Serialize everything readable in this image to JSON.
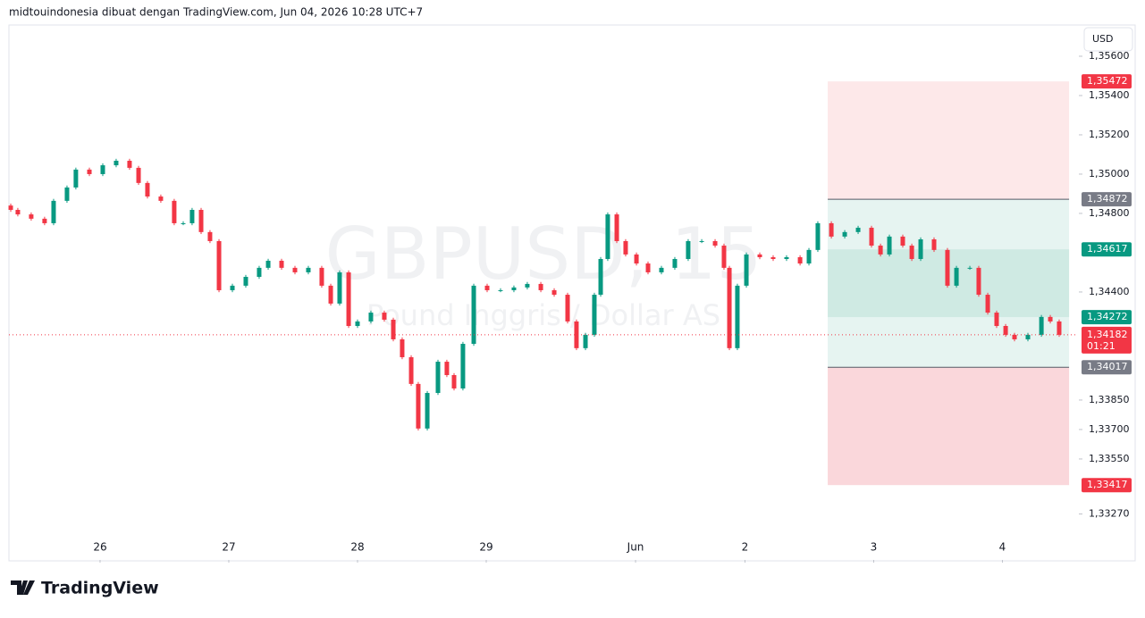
{
  "header": {
    "attribution": "midtouindonesia dibuat dengan TradingView.com, Jun 04, 2026 10:28 UTC+7"
  },
  "footer": {
    "logo": "TradingView"
  },
  "chart_data": {
    "type": "candlestick",
    "watermark": "GBPUSD, 15",
    "watermark_subtitle": "Pound Inggris / Dollar AS",
    "currency": "USD",
    "up_color": "#089981",
    "down_color": "#f23645",
    "xlim": [
      -0.708,
      7.59
    ],
    "xticks": [
      {
        "value": 0,
        "label": "26"
      },
      {
        "value": 1,
        "label": "27"
      },
      {
        "value": 2,
        "label": "28"
      },
      {
        "value": 3,
        "label": "29"
      },
      {
        "value": 4.16,
        "label": "Jun"
      },
      {
        "value": 5.01,
        "label": "2"
      },
      {
        "value": 6.01,
        "label": "3"
      },
      {
        "value": 7.01,
        "label": "4"
      }
    ],
    "ylim": [
      1.33036,
      1.35759
    ],
    "yticks": [
      {
        "value": 1.356,
        "label": "1,35600"
      },
      {
        "value": 1.354,
        "label": "1,35400"
      },
      {
        "value": 1.352,
        "label": "1,35200"
      },
      {
        "value": 1.35,
        "label": "1,35000"
      },
      {
        "value": 1.348,
        "label": "1,34800"
      },
      {
        "value": 1.344,
        "label": "1,34400"
      },
      {
        "value": 1.3385,
        "label": "1,33850"
      },
      {
        "value": 1.337,
        "label": "1,33700"
      },
      {
        "value": 1.3355,
        "label": "1,33550"
      },
      {
        "value": 1.3327,
        "label": "1,33270"
      }
    ],
    "x": [
      -0.694,
      -0.639,
      -0.535,
      -0.431,
      -0.361,
      -0.257,
      -0.188,
      -0.083,
      0.021,
      0.125,
      0.229,
      0.299,
      0.368,
      0.472,
      0.576,
      0.646,
      0.715,
      0.785,
      0.854,
      0.924,
      1.028,
      1.132,
      1.236,
      1.306,
      1.41,
      1.514,
      1.618,
      1.722,
      1.792,
      1.861,
      1.931,
      2.0,
      2.104,
      2.208,
      2.278,
      2.347,
      2.417,
      2.472,
      2.542,
      2.625,
      2.694,
      2.75,
      2.819,
      2.903,
      3.007,
      3.111,
      3.215,
      3.319,
      3.424,
      3.528,
      3.632,
      3.701,
      3.771,
      3.84,
      3.889,
      3.944,
      4.014,
      4.083,
      4.167,
      4.257,
      4.361,
      4.465,
      4.569,
      4.674,
      4.778,
      4.847,
      4.889,
      4.951,
      5.021,
      5.125,
      5.229,
      5.333,
      5.438,
      5.507,
      5.576,
      5.681,
      5.785,
      5.889,
      5.993,
      6.063,
      6.132,
      6.236,
      6.306,
      6.375,
      6.479,
      6.583,
      6.653,
      6.757,
      6.826,
      6.896,
      6.965,
      7.035,
      7.104,
      7.208,
      7.313,
      7.382,
      7.451
    ],
    "open": [
      1.3484,
      1.34818,
      1.34795,
      1.34773,
      1.3475,
      1.34864,
      1.34932,
      1.35023,
      1.35,
      1.35045,
      1.35068,
      1.35032,
      1.34955,
      1.34886,
      1.34864,
      1.3475,
      1.3475,
      1.34818,
      1.34705,
      1.34659,
      1.34409,
      1.34432,
      1.34477,
      1.34523,
      1.34559,
      1.34523,
      1.345,
      1.34523,
      1.34432,
      1.34341,
      1.345,
      1.34227,
      1.3425,
      1.34295,
      1.34259,
      1.34159,
      1.34068,
      1.33932,
      1.33705,
      1.33886,
      1.34045,
      1.33977,
      1.33909,
      1.34136,
      1.34432,
      1.34409,
      1.34409,
      1.34423,
      1.34441,
      1.34409,
      1.34386,
      1.3425,
      1.34114,
      1.34182,
      1.34386,
      1.34568,
      1.34795,
      1.34659,
      1.34591,
      1.34545,
      1.345,
      1.34523,
      1.34568,
      1.34659,
      1.34659,
      1.34636,
      1.34523,
      1.34114,
      1.34432,
      1.34591,
      1.34577,
      1.34568,
      1.34577,
      1.34545,
      1.34614,
      1.3475,
      1.34682,
      1.34705,
      1.34727,
      1.34636,
      1.34591,
      1.34682,
      1.34636,
      1.34568,
      1.34668,
      1.34614,
      1.34432,
      1.34523,
      1.34523,
      1.34386,
      1.34295,
      1.34227,
      1.34182,
      1.34159,
      1.34182,
      1.34273,
      1.3425
    ],
    "high": [
      1.3485,
      1.34828,
      1.34805,
      1.34783,
      1.34874,
      1.34942,
      1.35033,
      1.35033,
      1.35055,
      1.35078,
      1.35078,
      1.35042,
      1.34965,
      1.34896,
      1.34874,
      1.3476,
      1.34828,
      1.34828,
      1.34715,
      1.34669,
      1.34442,
      1.34487,
      1.34533,
      1.34569,
      1.34569,
      1.34533,
      1.34533,
      1.34533,
      1.34442,
      1.3451,
      1.3451,
      1.3426,
      1.34305,
      1.34305,
      1.34269,
      1.34169,
      1.34078,
      1.33942,
      1.33896,
      1.34055,
      1.34055,
      1.33987,
      1.34146,
      1.34442,
      1.34442,
      1.34419,
      1.34433,
      1.34451,
      1.34451,
      1.34419,
      1.34396,
      1.3426,
      1.34192,
      1.34396,
      1.34578,
      1.34805,
      1.34805,
      1.34669,
      1.34601,
      1.34555,
      1.34533,
      1.34578,
      1.34669,
      1.34669,
      1.34669,
      1.34646,
      1.34533,
      1.34442,
      1.34601,
      1.34601,
      1.34587,
      1.34587,
      1.34587,
      1.34624,
      1.3476,
      1.3476,
      1.34715,
      1.34737,
      1.34737,
      1.34646,
      1.34692,
      1.34692,
      1.34646,
      1.34678,
      1.34678,
      1.34624,
      1.34533,
      1.34533,
      1.34533,
      1.34396,
      1.34305,
      1.34237,
      1.34192,
      1.34192,
      1.34283,
      1.34283,
      1.3426
    ],
    "low": [
      1.34808,
      1.34785,
      1.34763,
      1.3474,
      1.3474,
      1.34854,
      1.34922,
      1.3499,
      1.3499,
      1.35035,
      1.35022,
      1.34945,
      1.34876,
      1.34854,
      1.3474,
      1.3474,
      1.3474,
      1.34695,
      1.34649,
      1.34399,
      1.34399,
      1.34422,
      1.34467,
      1.34513,
      1.34513,
      1.3449,
      1.3449,
      1.34422,
      1.34331,
      1.34331,
      1.34217,
      1.34217,
      1.3424,
      1.34249,
      1.34149,
      1.34058,
      1.33922,
      1.33695,
      1.33695,
      1.33876,
      1.33967,
      1.33899,
      1.33899,
      1.34126,
      1.34399,
      1.34399,
      1.34399,
      1.34413,
      1.34399,
      1.34376,
      1.3424,
      1.34104,
      1.34104,
      1.34172,
      1.34376,
      1.34558,
      1.34649,
      1.34581,
      1.34535,
      1.3449,
      1.3449,
      1.34513,
      1.34558,
      1.34649,
      1.34626,
      1.34513,
      1.34104,
      1.34104,
      1.34422,
      1.34567,
      1.34558,
      1.34558,
      1.34535,
      1.34535,
      1.34604,
      1.34672,
      1.34672,
      1.34695,
      1.34626,
      1.34581,
      1.34581,
      1.34626,
      1.34558,
      1.34558,
      1.34604,
      1.34422,
      1.34422,
      1.34513,
      1.34376,
      1.34285,
      1.34217,
      1.34172,
      1.34149,
      1.34149,
      1.34172,
      1.3424,
      1.34172
    ],
    "close": [
      1.34818,
      1.34795,
      1.34773,
      1.3475,
      1.34864,
      1.34932,
      1.35023,
      1.35,
      1.35045,
      1.35068,
      1.35032,
      1.34955,
      1.34886,
      1.34864,
      1.3475,
      1.3475,
      1.34818,
      1.34705,
      1.34659,
      1.34409,
      1.34432,
      1.34477,
      1.34523,
      1.34559,
      1.34523,
      1.345,
      1.34523,
      1.34432,
      1.34341,
      1.345,
      1.34227,
      1.3425,
      1.34295,
      1.34259,
      1.34159,
      1.34068,
      1.33932,
      1.33705,
      1.33886,
      1.34045,
      1.33977,
      1.33909,
      1.34136,
      1.34432,
      1.34409,
      1.34409,
      1.34423,
      1.34441,
      1.34409,
      1.34386,
      1.3425,
      1.34114,
      1.34182,
      1.34386,
      1.34568,
      1.34795,
      1.34659,
      1.34591,
      1.34545,
      1.345,
      1.34523,
      1.34568,
      1.34659,
      1.34659,
      1.34636,
      1.34523,
      1.34114,
      1.34432,
      1.34591,
      1.34577,
      1.34568,
      1.34577,
      1.34545,
      1.34614,
      1.3475,
      1.34682,
      1.34705,
      1.34727,
      1.34636,
      1.34591,
      1.34682,
      1.34636,
      1.34568,
      1.34668,
      1.34614,
      1.34432,
      1.34523,
      1.34523,
      1.34386,
      1.34295,
      1.34227,
      1.34182,
      1.34159,
      1.34182,
      1.34273,
      1.3425,
      1.34182
    ],
    "position_x": [
      5.653,
      7.528
    ],
    "zones": [
      {
        "top": 1.35472,
        "bottom": 1.34872,
        "color": "#fde8e9"
      },
      {
        "top": 1.34872,
        "bottom": 1.34017,
        "color": "#e6f4f1"
      },
      {
        "top": 1.34617,
        "bottom": 1.34272,
        "color": "#cfeae3"
      },
      {
        "top": 1.34017,
        "bottom": 1.33417,
        "color": "#fad7db"
      }
    ],
    "price_labels": [
      {
        "value": 1.35472,
        "label": "1,35472",
        "color": "#f23645"
      },
      {
        "value": 1.34872,
        "label": "1,34872",
        "color": "#787b86"
      },
      {
        "value": 1.34617,
        "label": "1,34617",
        "color": "#089981"
      },
      {
        "value": 1.34272,
        "label": "1,34272",
        "color": "#089981"
      },
      {
        "value": 1.34017,
        "label": "1,34017",
        "color": "#787b86"
      },
      {
        "value": 1.33417,
        "label": "1,33417",
        "color": "#f23645"
      }
    ],
    "last_price": {
      "value": 1.34182,
      "label": "1,34182",
      "countdown": "01:21",
      "color": "#f23645"
    }
  }
}
